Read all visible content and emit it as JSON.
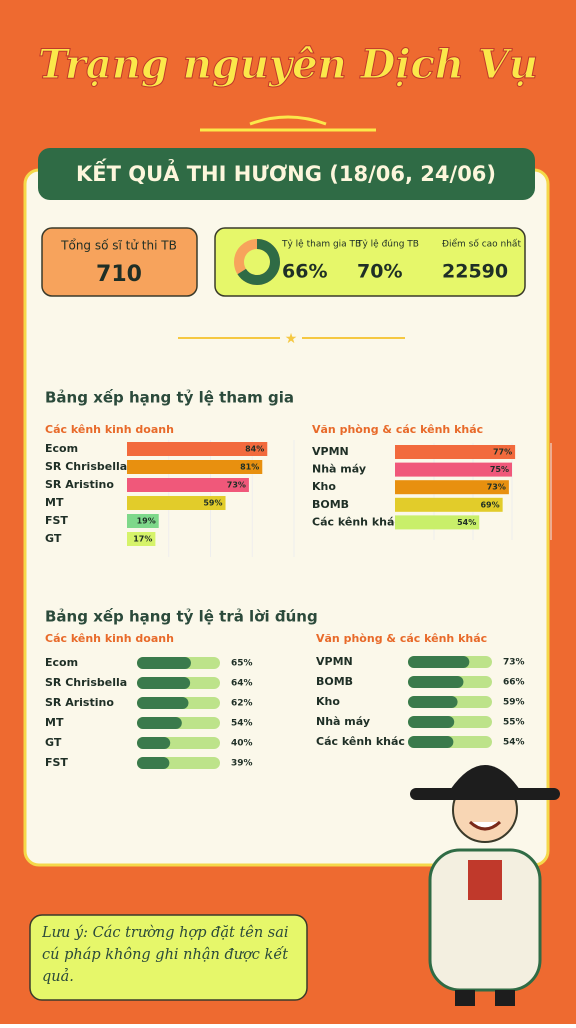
{
  "header": {
    "title": "Trạng nguyên Dịch Vụ",
    "subtitle": "KẾT QUẢ THI HƯƠNG (18/06, 24/06)"
  },
  "summary": {
    "total_label": "Tổng số sĩ tử thi TB",
    "total": 710,
    "participation_label": "Tỷ lệ tham gia TB",
    "participation": {
      "value": 66,
      "label": "66%"
    },
    "correct_label": "Tỷ lệ đúng TB",
    "correct": {
      "value": 70,
      "label": "70%"
    },
    "top_score_label": "Điểm số cao nhất",
    "top_score": 22590
  },
  "participation_ranking": {
    "title": "Bảng xếp hạng tỷ lệ tham gia",
    "xlim": [
      0,
      100
    ],
    "groups": [
      {
        "name": "Các kênh kinh doanh",
        "categories": [
          "Ecom",
          "SR Chrisbella",
          "SR Aristino",
          "MT",
          "FST",
          "GT"
        ],
        "values": [
          84,
          81,
          73,
          59,
          19,
          17
        ],
        "value_labels": [
          "84%",
          "81%",
          "73%",
          "59%",
          "19%",
          "17%"
        ],
        "colors": [
          "#f26a3d",
          "#e8900f",
          "#f0587a",
          "#e2cc2a",
          "#7ed88a",
          "#d6f36a"
        ]
      },
      {
        "name": "Văn phòng & các kênh khác",
        "categories": [
          "VPMN",
          "Nhà máy",
          "Kho",
          "BOMB",
          "Các kênh khác"
        ],
        "values": [
          77,
          75,
          73,
          69,
          54
        ],
        "value_labels": [
          "77%",
          "75%",
          "73%",
          "69%",
          "54%"
        ],
        "colors": [
          "#f26a3d",
          "#f0587a",
          "#e8900f",
          "#e2cc2a",
          "#c9ef6a"
        ]
      }
    ]
  },
  "correct_ranking": {
    "title": "Bảng xếp hạng tỷ lệ trả lời đúng",
    "xlim": [
      0,
      100
    ],
    "groups": [
      {
        "name": "Các kênh kinh doanh",
        "categories": [
          "Ecom",
          "SR Chrisbella",
          "SR Aristino",
          "MT",
          "GT",
          "FST"
        ],
        "values": [
          65,
          64,
          62,
          54,
          40,
          39
        ],
        "value_labels": [
          "65%",
          "64%",
          "62%",
          "54%",
          "40%",
          "39%"
        ]
      },
      {
        "name": "Văn phòng & các kênh khác",
        "categories": [
          "VPMN",
          "BOMB",
          "Kho",
          "Nhà máy",
          "Các kênh khác"
        ],
        "values": [
          73,
          66,
          59,
          55,
          54
        ],
        "value_labels": [
          "73%",
          "66%",
          "59%",
          "55%",
          "54%"
        ]
      }
    ]
  },
  "note": "Lưu ý: Các trường hợp đặt tên sai cú pháp không ghi nhận được kết quả."
}
